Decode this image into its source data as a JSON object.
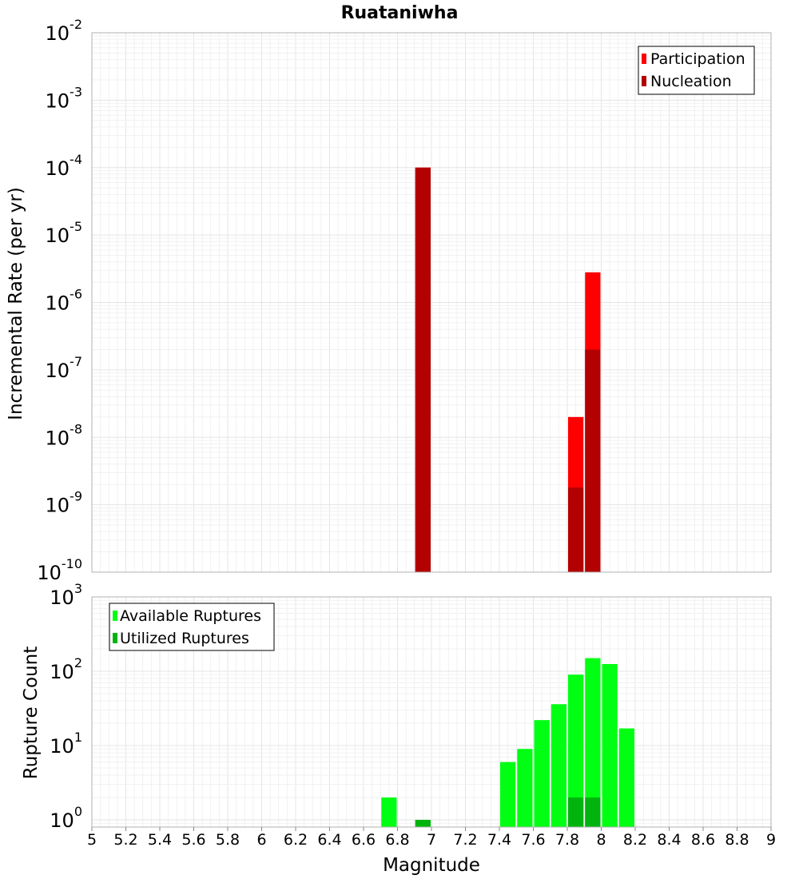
{
  "chart_data": [
    {
      "type": "bar",
      "title": "Ruataniwha",
      "ylabel": "Incremental Rate (per yr)",
      "yscale": "log",
      "ylim": [
        1e-10,
        0.01
      ],
      "xlim": [
        5,
        9
      ],
      "y_ticks": [
        {
          "base": "10",
          "exp": "-10",
          "value": 1e-10
        },
        {
          "base": "10",
          "exp": "-9",
          "value": 1e-09
        },
        {
          "base": "10",
          "exp": "-8",
          "value": 1e-08
        },
        {
          "base": "10",
          "exp": "-7",
          "value": 1e-07
        },
        {
          "base": "10",
          "exp": "-6",
          "value": 1e-06
        },
        {
          "base": "10",
          "exp": "-5",
          "value": 1e-05
        },
        {
          "base": "10",
          "exp": "-4",
          "value": 0.0001
        },
        {
          "base": "10",
          "exp": "-3",
          "value": 0.001
        },
        {
          "base": "10",
          "exp": "-2",
          "value": 0.01
        }
      ],
      "legend_position": "top-right",
      "grid": true,
      "series": [
        {
          "name": "Participation",
          "color": "#ff0000",
          "x": [
            6.95,
            7.85,
            7.95
          ],
          "values": [
            0.0001,
            2e-08,
            2.8e-06
          ]
        },
        {
          "name": "Nucleation",
          "color": "#b30000",
          "x": [
            6.95,
            7.85,
            7.95
          ],
          "values": [
            0.0001,
            1.8e-09,
            2e-07
          ]
        }
      ]
    },
    {
      "type": "bar",
      "xlabel": "Magnitude",
      "ylabel": "Rupture Count",
      "yscale": "log",
      "ylim": [
        0.8,
        1000
      ],
      "xlim": [
        5,
        9
      ],
      "x_ticks": [
        "5",
        "5.2",
        "5.4",
        "5.6",
        "5.8",
        "6",
        "6.2",
        "6.4",
        "6.6",
        "6.8",
        "7",
        "7.2",
        "7.4",
        "7.6",
        "7.8",
        "8",
        "8.2",
        "8.4",
        "8.6",
        "8.8",
        "9"
      ],
      "y_ticks": [
        {
          "base": "10",
          "exp": "0",
          "value": 1
        },
        {
          "base": "10",
          "exp": "1",
          "value": 10
        },
        {
          "base": "10",
          "exp": "2",
          "value": 100
        },
        {
          "base": "10",
          "exp": "3",
          "value": 1000
        }
      ],
      "legend_position": "top-left",
      "grid": true,
      "series": [
        {
          "name": "Available Ruptures",
          "color": "#00ff12",
          "x": [
            6.75,
            6.95,
            7.45,
            7.55,
            7.65,
            7.75,
            7.85,
            7.95,
            8.05,
            8.15
          ],
          "values": [
            2,
            1,
            6,
            9,
            22,
            36,
            90,
            150,
            125,
            17
          ]
        },
        {
          "name": "Utilized Ruptures",
          "color": "#00b40d",
          "x": [
            6.95,
            7.85,
            7.95
          ],
          "values": [
            1,
            2,
            2
          ]
        }
      ]
    }
  ]
}
